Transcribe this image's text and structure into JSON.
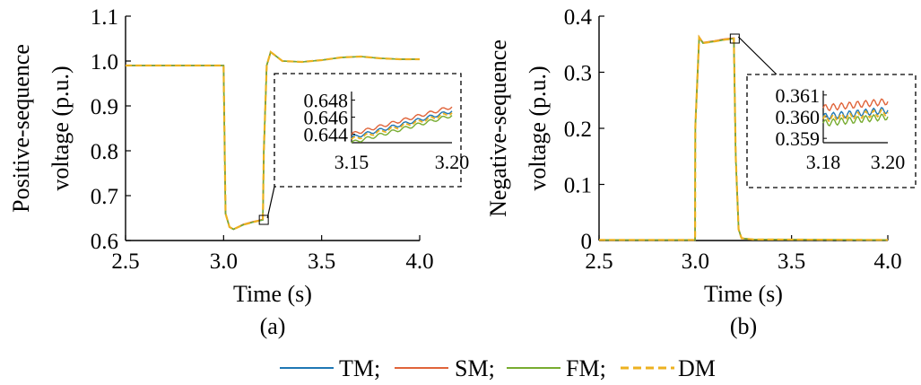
{
  "colors": {
    "TM": "#1f77b4",
    "SM": "#e0643a",
    "FM": "#77ac30",
    "DM": "#edb120"
  },
  "legend": {
    "items": [
      {
        "key": "TM",
        "label": "TM;",
        "style": "solid"
      },
      {
        "key": "SM",
        "label": "SM;",
        "style": "solid"
      },
      {
        "key": "FM",
        "label": "FM;",
        "style": "solid"
      },
      {
        "key": "DM",
        "label": "DM",
        "style": "dashed"
      }
    ]
  },
  "chart_data": [
    {
      "type": "line",
      "panel_label": "(a)",
      "xlabel": "Time (s)",
      "ylabel_lines": [
        "Positive-sequence",
        "voltage (p.u.)"
      ],
      "xlim": [
        2.5,
        4.0
      ],
      "ylim": [
        0.6,
        1.1
      ],
      "xticks": [
        "2.5",
        "3.0",
        "3.5",
        "4.0"
      ],
      "yticks": [
        "0.6",
        "0.7",
        "0.8",
        "0.9",
        "1.0",
        "1.1"
      ],
      "x": [
        2.5,
        2.75,
        3.0,
        3.01,
        3.03,
        3.05,
        3.1,
        3.15,
        3.2,
        3.205,
        3.22,
        3.24,
        3.27,
        3.3,
        3.4,
        3.5,
        3.6,
        3.7,
        3.8,
        3.9,
        4.0
      ],
      "series": [
        {
          "name": "TM",
          "values": [
            0.99,
            0.99,
            0.99,
            0.66,
            0.63,
            0.625,
            0.635,
            0.641,
            0.646,
            0.8,
            0.99,
            1.02,
            1.01,
            1.0,
            0.998,
            1.002,
            1.008,
            1.01,
            1.006,
            1.004,
            1.004
          ]
        },
        {
          "name": "SM",
          "values": [
            0.99,
            0.99,
            0.99,
            0.66,
            0.63,
            0.625,
            0.636,
            0.642,
            0.647,
            0.8,
            0.99,
            1.02,
            1.01,
            1.0,
            0.998,
            1.002,
            1.008,
            1.01,
            1.006,
            1.004,
            1.004
          ]
        },
        {
          "name": "FM",
          "values": [
            0.99,
            0.99,
            0.99,
            0.66,
            0.63,
            0.625,
            0.635,
            0.641,
            0.646,
            0.8,
            0.99,
            1.02,
            1.01,
            1.0,
            0.998,
            1.002,
            1.008,
            1.01,
            1.006,
            1.004,
            1.004
          ]
        },
        {
          "name": "DM",
          "values": [
            0.99,
            0.99,
            0.99,
            0.66,
            0.63,
            0.625,
            0.635,
            0.641,
            0.646,
            0.8,
            0.99,
            1.02,
            1.01,
            1.0,
            0.998,
            1.002,
            1.008,
            1.01,
            1.006,
            1.004,
            1.004
          ]
        }
      ],
      "inset": {
        "xlim": [
          3.15,
          3.2
        ],
        "ylim": [
          0.643,
          0.649
        ],
        "xticks": [
          "3.15",
          "3.20"
        ],
        "yticks": [
          "0.644",
          "0.646",
          "0.648"
        ],
        "series": [
          {
            "name": "SM",
            "start": 0.644,
            "end": 0.6472,
            "ripple": 0.0004
          },
          {
            "name": "TM",
            "start": 0.6436,
            "end": 0.6467,
            "ripple": 0.0004
          },
          {
            "name": "DM",
            "start": 0.6434,
            "end": 0.6465,
            "ripple": 0.0004
          },
          {
            "name": "FM",
            "start": 0.643,
            "end": 0.6462,
            "ripple": 0.0004
          }
        ]
      }
    },
    {
      "type": "line",
      "panel_label": "(b)",
      "xlabel": "Time (s)",
      "ylabel_lines": [
        "Negative-sequence",
        "voltage (p.u.)"
      ],
      "xlim": [
        2.5,
        4.0
      ],
      "ylim": [
        0,
        0.4
      ],
      "xticks": [
        "2.5",
        "3.0",
        "3.5",
        "4.0"
      ],
      "yticks": [
        "0",
        "0.1",
        "0.2",
        "0.3",
        "0.4"
      ],
      "x": [
        2.5,
        2.999,
        3.0,
        3.02,
        3.04,
        3.1,
        3.15,
        3.2,
        3.21,
        3.225,
        3.24,
        3.3,
        4.0
      ],
      "series": [
        {
          "name": "TM",
          "values": [
            0.001,
            0.001,
            0.2,
            0.362,
            0.352,
            0.355,
            0.358,
            0.36,
            0.15,
            0.02,
            0.004,
            0.002,
            0.001
          ]
        },
        {
          "name": "SM",
          "values": [
            0.001,
            0.001,
            0.2,
            0.363,
            0.353,
            0.356,
            0.359,
            0.361,
            0.15,
            0.02,
            0.004,
            0.002,
            0.001
          ]
        },
        {
          "name": "FM",
          "values": [
            0.001,
            0.001,
            0.2,
            0.362,
            0.352,
            0.355,
            0.358,
            0.36,
            0.15,
            0.02,
            0.004,
            0.002,
            0.001
          ]
        },
        {
          "name": "DM",
          "values": [
            0.001,
            0.001,
            0.2,
            0.362,
            0.352,
            0.355,
            0.358,
            0.36,
            0.15,
            0.02,
            0.004,
            0.002,
            0.001
          ]
        }
      ],
      "inset": {
        "xlim": [
          3.18,
          3.2
        ],
        "ylim": [
          0.3588,
          0.3612
        ],
        "xticks": [
          "3.18",
          "3.20"
        ],
        "yticks": [
          "0.359",
          "0.360",
          "0.361"
        ],
        "series": [
          {
            "name": "SM",
            "start": 0.3604,
            "end": 0.3607,
            "ripple": 0.0003
          },
          {
            "name": "TM",
            "start": 0.36,
            "end": 0.3603,
            "ripple": 0.0003
          },
          {
            "name": "DM",
            "start": 0.3599,
            "end": 0.3602,
            "ripple": 0.0003
          },
          {
            "name": "FM",
            "start": 0.3597,
            "end": 0.36,
            "ripple": 0.0003
          }
        ]
      }
    }
  ]
}
